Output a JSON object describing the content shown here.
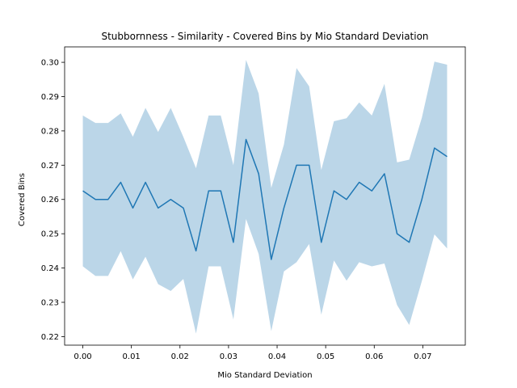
{
  "chart_data": {
    "type": "line",
    "title": "Stubbornness - Similarity - Covered Bins by Mio Standard Deviation",
    "xlabel": "Mio Standard Deviation",
    "ylabel": "Covered Bins",
    "xlim": [
      -0.00375,
      0.07875
    ],
    "ylim": [
      0.2175,
      0.3045
    ],
    "xticks": [
      0.0,
      0.01,
      0.02,
      0.03,
      0.04,
      0.05,
      0.06,
      0.07
    ],
    "xtick_labels": [
      "0.00",
      "0.01",
      "0.02",
      "0.03",
      "0.04",
      "0.05",
      "0.06",
      "0.07"
    ],
    "yticks": [
      0.22,
      0.23,
      0.24,
      0.25,
      0.26,
      0.27,
      0.28,
      0.29,
      0.3
    ],
    "ytick_labels": [
      "0.22",
      "0.23",
      "0.24",
      "0.25",
      "0.26",
      "0.27",
      "0.28",
      "0.29",
      "0.30"
    ],
    "grid": false,
    "colors": {
      "line": "#1f77b4",
      "band": "#1f77b4",
      "band_opacity": 0.3
    },
    "series": [
      {
        "x": [
          0.0,
          0.0026,
          0.0052,
          0.0078,
          0.0103,
          0.0129,
          0.0155,
          0.0181,
          0.0207,
          0.0233,
          0.0259,
          0.0284,
          0.031,
          0.0336,
          0.0362,
          0.0388,
          0.0414,
          0.044,
          0.0466,
          0.0491,
          0.0517,
          0.0543,
          0.0569,
          0.0595,
          0.0621,
          0.0647,
          0.0672,
          0.0698,
          0.0724,
          0.075
        ],
        "values": [
          0.2625,
          0.26,
          0.26,
          0.265,
          0.2575,
          0.265,
          0.2575,
          0.26,
          0.2575,
          0.245,
          0.2625,
          0.2625,
          0.2475,
          0.2775,
          0.2675,
          0.2425,
          0.2575,
          0.27,
          0.27,
          0.2475,
          0.2625,
          0.26,
          0.265,
          0.2625,
          0.2675,
          0.25,
          0.2475,
          0.26,
          0.275,
          0.2725
        ],
        "upper": [
          0.2845,
          0.2823,
          0.2823,
          0.2851,
          0.2783,
          0.2867,
          0.2797,
          0.2867,
          0.2782,
          0.2691,
          0.2845,
          0.2845,
          0.27,
          0.3007,
          0.2909,
          0.2634,
          0.276,
          0.2983,
          0.293,
          0.2686,
          0.2828,
          0.2837,
          0.2883,
          0.2845,
          0.2937,
          0.2708,
          0.2716,
          0.2838,
          0.3002,
          0.2993
        ],
        "lower": [
          0.2405,
          0.2377,
          0.2377,
          0.2449,
          0.2367,
          0.2433,
          0.2353,
          0.2333,
          0.2368,
          0.2209,
          0.2405,
          0.2405,
          0.225,
          0.2543,
          0.2441,
          0.2216,
          0.239,
          0.2417,
          0.247,
          0.2264,
          0.2422,
          0.2363,
          0.2417,
          0.2405,
          0.2413,
          0.2292,
          0.2234,
          0.2362,
          0.2498,
          0.2457
        ]
      }
    ]
  }
}
